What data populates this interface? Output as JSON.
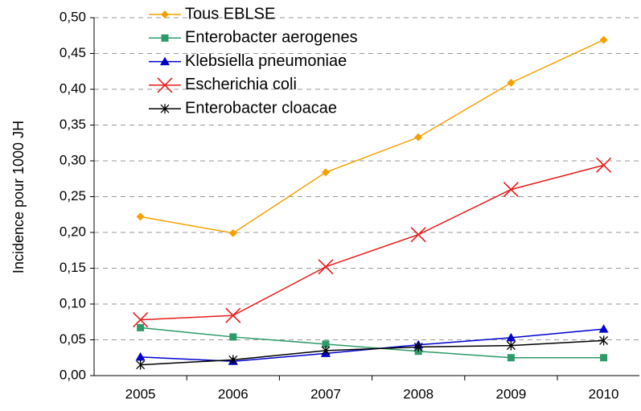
{
  "chart_data": {
    "type": "line",
    "ylabel": "Incidence pour 1000 JH",
    "categories": [
      "2005",
      "2006",
      "2007",
      "2008",
      "2009",
      "2010"
    ],
    "series": [
      {
        "name": "Tous EBLSE",
        "color": "#f5a000",
        "marker": "diamond",
        "values": [
          0.222,
          0.199,
          0.284,
          0.333,
          0.409,
          0.469
        ]
      },
      {
        "name": "Enterobacter aerogenes",
        "color": "#2e9a6a",
        "marker": "square",
        "values": [
          0.067,
          0.054,
          0.044,
          0.034,
          0.025,
          0.025
        ]
      },
      {
        "name": "Klebsiella pneumoniae",
        "color": "#0000d0",
        "marker": "triangle",
        "values": [
          0.026,
          0.02,
          0.031,
          0.043,
          0.053,
          0.065
        ]
      },
      {
        "name": "Escherichia coli",
        "color": "#e81c1c",
        "marker": "x",
        "values": [
          0.078,
          0.084,
          0.152,
          0.197,
          0.26,
          0.294
        ]
      },
      {
        "name": "Enterobacter cloacae",
        "color": "#000000",
        "marker": "star",
        "values": [
          0.015,
          0.022,
          0.035,
          0.04,
          0.042,
          0.049
        ]
      }
    ],
    "ylim": [
      0,
      0.5
    ],
    "yticks": [
      {
        "value": 0,
        "label": "0,00"
      },
      {
        "value": 0.05,
        "label": "0,05"
      },
      {
        "value": 0.1,
        "label": "0,10"
      },
      {
        "value": 0.15,
        "label": "0,15"
      },
      {
        "value": 0.2,
        "label": "0,20"
      },
      {
        "value": 0.25,
        "label": "0,25"
      },
      {
        "value": 0.3,
        "label": "0,30"
      },
      {
        "value": 0.35,
        "label": "0,35"
      },
      {
        "value": 0.4,
        "label": "0,40"
      },
      {
        "value": 0.45,
        "label": "0,45"
      },
      {
        "value": 0.5,
        "label": "0,50"
      }
    ],
    "grid": true,
    "legend": "top-left"
  }
}
